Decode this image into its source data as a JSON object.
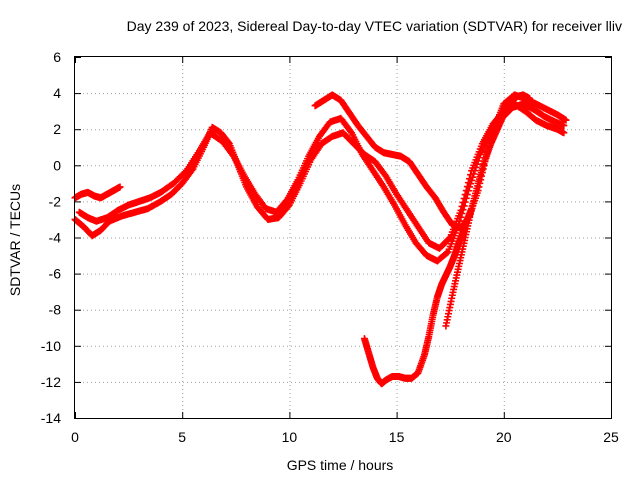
{
  "chart_data": {
    "type": "scatter",
    "title": "Day 239 of 2023, Sidereal Day-to-day VTEC variation (SDTVAR) for receiver lliv",
    "xlabel": "GPS time / hours",
    "ylabel": "SDTVAR / TECUs",
    "xlim": [
      0,
      25
    ],
    "ylim": [
      -14,
      6
    ],
    "xticks": [
      0,
      5,
      10,
      15,
      20,
      25
    ],
    "yticks": [
      -14,
      -12,
      -10,
      -8,
      -6,
      -4,
      -2,
      0,
      2,
      4,
      6
    ],
    "grid": true,
    "marker": "plus",
    "colors": {
      "series": "#ff0000",
      "grid": "#a0a0a0",
      "frame": "#000000"
    },
    "series": [
      {
        "name": "track-1",
        "x": [
          0.0,
          0.4,
          0.8,
          1.2,
          1.6,
          2.2,
          2.8,
          3.4,
          4.0,
          4.5,
          5.0,
          5.5,
          6.0,
          6.4,
          6.8,
          7.2,
          7.6,
          8.0,
          8.5,
          9.0,
          9.5,
          10.0,
          10.5,
          11.0,
          11.5,
          12.0,
          12.5,
          13.0,
          13.5,
          14.0,
          14.5,
          15.0,
          15.5,
          16.0,
          16.5,
          17.0,
          17.5,
          18.0,
          18.5,
          19.0,
          19.5,
          20.0,
          20.5,
          21.0,
          21.5,
          22.0,
          22.5,
          22.8
        ],
        "y": [
          -3.0,
          -3.4,
          -3.9,
          -3.6,
          -3.1,
          -2.8,
          -2.6,
          -2.4,
          -2.0,
          -1.6,
          -1.0,
          -0.2,
          1.0,
          2.1,
          1.8,
          1.2,
          0.0,
          -1.2,
          -2.3,
          -3.0,
          -2.9,
          -2.2,
          -1.0,
          0.3,
          1.2,
          1.6,
          1.8,
          1.2,
          0.6,
          0.2,
          -0.6,
          -1.6,
          -2.5,
          -3.4,
          -4.3,
          -4.6,
          -4.0,
          -2.5,
          -0.3,
          1.2,
          2.3,
          3.0,
          3.4,
          3.0,
          2.5,
          2.2,
          2.0,
          1.8
        ]
      },
      {
        "name": "track-2",
        "x": [
          0.2,
          0.6,
          1.0,
          1.5,
          2.0,
          2.5,
          3.0,
          3.5,
          4.0,
          4.6,
          5.2,
          5.8,
          6.3,
          6.9,
          7.4,
          7.9,
          8.4,
          8.9,
          9.4,
          9.9,
          10.4,
          10.9,
          11.4,
          11.9,
          12.4,
          12.9,
          13.4,
          13.9,
          14.4,
          14.9,
          15.4,
          15.9,
          16.4,
          16.9,
          17.4,
          17.9,
          18.4,
          18.9,
          19.4,
          19.9,
          20.4,
          20.9,
          21.4,
          21.9,
          22.4,
          22.8
        ],
        "y": [
          -2.6,
          -2.9,
          -3.1,
          -2.9,
          -2.5,
          -2.2,
          -2.0,
          -1.8,
          -1.5,
          -1.0,
          -0.3,
          0.8,
          1.8,
          1.3,
          0.5,
          -0.6,
          -1.6,
          -2.4,
          -2.6,
          -1.9,
          -0.8,
          0.5,
          1.6,
          2.4,
          2.6,
          1.8,
          0.6,
          -0.3,
          -1.2,
          -2.2,
          -3.3,
          -4.3,
          -5.0,
          -5.3,
          -4.8,
          -3.3,
          -1.2,
          0.6,
          1.8,
          2.6,
          3.2,
          3.4,
          3.1,
          2.7,
          2.4,
          2.2
        ]
      },
      {
        "name": "track-3",
        "x": [
          11.2,
          11.6,
          12.0,
          12.4,
          12.8,
          13.2,
          13.6,
          14.0,
          14.4,
          14.8,
          15.2,
          15.6,
          16.0,
          16.4,
          16.8,
          17.2,
          17.6,
          18.0,
          18.4,
          18.8,
          19.2,
          19.6,
          20.0,
          20.5,
          21.0,
          21.5,
          22.0,
          22.5,
          22.9
        ],
        "y": [
          3.3,
          3.6,
          3.9,
          3.6,
          2.9,
          2.2,
          1.6,
          1.0,
          0.7,
          0.6,
          0.5,
          0.2,
          -0.5,
          -1.2,
          -1.8,
          -2.6,
          -3.3,
          -3.5,
          -2.8,
          -1.4,
          0.6,
          2.2,
          3.4,
          3.9,
          3.7,
          3.4,
          3.1,
          2.8,
          2.5
        ]
      },
      {
        "name": "track-4",
        "x": [
          13.5,
          13.7,
          13.9,
          14.1,
          14.3,
          14.5,
          14.8,
          15.1,
          15.4,
          15.7,
          16.0,
          16.3,
          16.5,
          16.7,
          16.9,
          17.1,
          17.3,
          17.5,
          17.7,
          17.9,
          18.1,
          18.3,
          18.5
        ],
        "y": [
          -9.6,
          -10.4,
          -11.2,
          -11.8,
          -12.1,
          -11.9,
          -11.7,
          -11.7,
          -11.8,
          -11.8,
          -11.5,
          -10.5,
          -9.5,
          -8.3,
          -7.3,
          -6.6,
          -6.1,
          -5.6,
          -5.0,
          -4.3,
          -3.7,
          -3.0,
          -2.4
        ]
      },
      {
        "name": "track-5",
        "x": [
          17.3,
          17.6,
          17.9,
          18.2,
          18.5,
          18.8,
          19.1,
          19.4,
          19.7,
          20.0,
          20.3,
          20.6,
          20.9,
          21.2
        ],
        "y": [
          -8.9,
          -7.2,
          -5.6,
          -4.0,
          -2.4,
          -1.0,
          0.2,
          1.2,
          2.0,
          2.8,
          3.4,
          3.8,
          3.9,
          3.7
        ]
      },
      {
        "name": "track-6",
        "x": [
          0.0,
          0.3,
          0.6,
          0.9,
          1.2,
          1.5,
          1.8,
          2.1
        ],
        "y": [
          -1.8,
          -1.6,
          -1.5,
          -1.7,
          -1.8,
          -1.6,
          -1.4,
          -1.2
        ]
      }
    ]
  }
}
